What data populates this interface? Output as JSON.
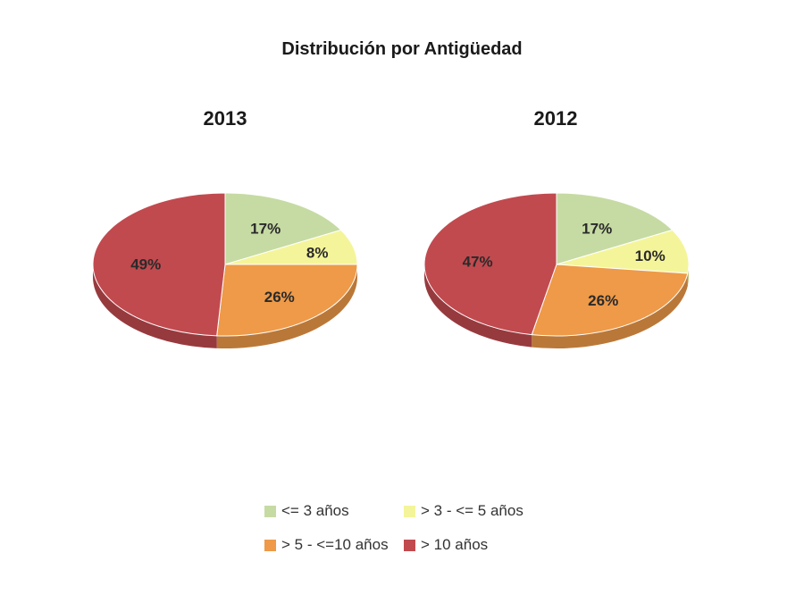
{
  "title": "Distribución por Antigüedad",
  "chart_data": {
    "type": "pie",
    "title": "Distribución por Antigüedad",
    "categories": [
      "<= 3 años",
      "> 3 - <= 5 años",
      "> 5 - <=10 años",
      "> 10 años"
    ],
    "colors": [
      "#c6dba3",
      "#f4f59a",
      "#ee9a48",
      "#c14a4f"
    ],
    "legend_position": "bottom",
    "pies": [
      {
        "name": "2013",
        "values": [
          17,
          8,
          26,
          49
        ],
        "labels": [
          "17%",
          "8%",
          "26%",
          "49%"
        ]
      },
      {
        "name": "2012",
        "values": [
          17,
          10,
          26,
          47
        ],
        "labels": [
          "17%",
          "10%",
          "26%",
          "47%"
        ]
      }
    ]
  }
}
